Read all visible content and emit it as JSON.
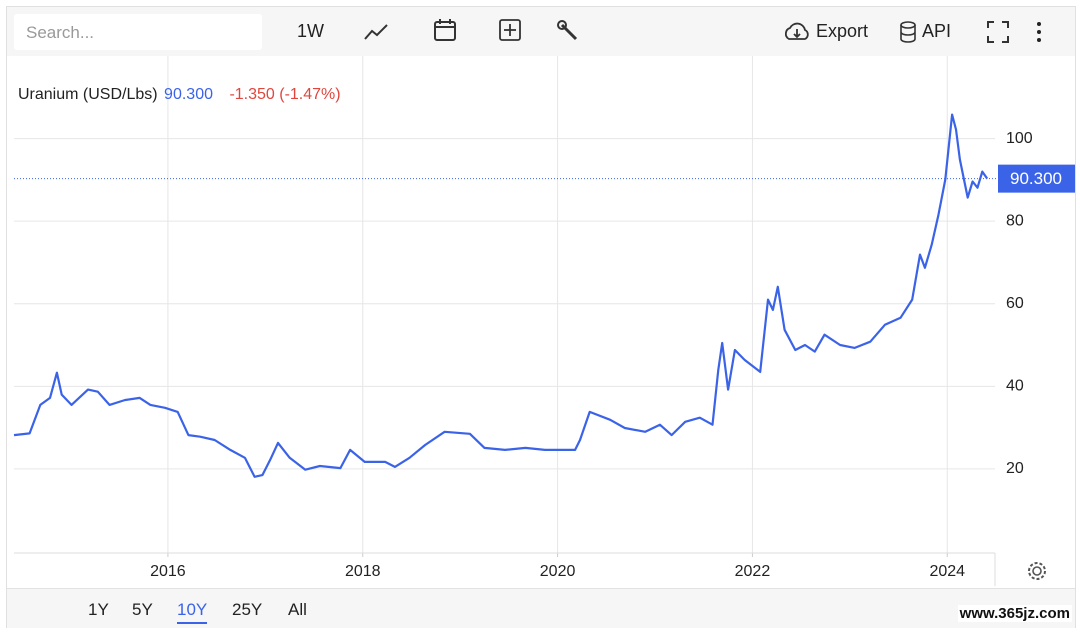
{
  "toolbar": {
    "search_placeholder": "Search...",
    "interval": "1W",
    "export": "Export",
    "api": "API"
  },
  "chart_data": {
    "type": "line",
    "change": "-1.350 (-1.47%)",
    "last_value": {
      "value": 90.3,
      "label": "90.300"
    },
    "x": [
      2014.42,
      2014.58,
      2014.69,
      2014.79,
      2014.86,
      2014.91,
      2015.01,
      2015.18,
      2015.28,
      2015.4,
      2015.56,
      2015.71,
      2015.82,
      2015.97,
      2016.1,
      2016.21,
      2016.33,
      2016.48,
      2016.64,
      2016.79,
      2016.89,
      2016.97,
      2017.05,
      2017.13,
      2017.25,
      2017.41,
      2017.56,
      2017.77,
      2017.87,
      2018.02,
      2018.23,
      2018.33,
      2018.48,
      2018.64,
      2018.84,
      2019.1,
      2019.25,
      2019.46,
      2019.67,
      2019.87,
      2020.18,
      2020.23,
      2020.33,
      2020.54,
      2020.69,
      2020.9,
      2021.05,
      2021.17,
      2021.31,
      2021.46,
      2021.59,
      2021.65,
      2021.69,
      2021.75,
      2021.82,
      2021.92,
      2022.08,
      2022.16,
      2022.21,
      2022.26,
      2022.33,
      2022.44,
      2022.54,
      2022.64,
      2022.74,
      2022.9,
      2023.05,
      2023.21,
      2023.36,
      2023.52,
      2023.64,
      2023.72,
      2023.77,
      2023.84,
      2023.91,
      2023.98,
      2024.05,
      2024.09,
      2024.13,
      2024.21,
      2024.26,
      2024.31,
      2024.36,
      2024.41
    ],
    "series": [
      {
        "name": "Uranium (USD/Lbs)",
        "color": "#3b63e8",
        "values": [
          28.2,
          28.6,
          35.5,
          37.2,
          43.3,
          38,
          35.5,
          39.2,
          38.7,
          35.5,
          36.7,
          37.2,
          35.5,
          34.8,
          33.8,
          28.2,
          27.8,
          27,
          24.6,
          22.7,
          18.1,
          18.5,
          22.2,
          26.3,
          22.7,
          19.8,
          20.7,
          20.2,
          24.6,
          21.7,
          21.7,
          20.5,
          22.7,
          25.8,
          29,
          28.5,
          25.1,
          24.6,
          25.1,
          24.6,
          24.6,
          27,
          33.8,
          31.9,
          29.9,
          29,
          30.7,
          28.2,
          31.4,
          32.4,
          30.7,
          44,
          50.5,
          39.2,
          48.8,
          46.4,
          43.5,
          61,
          58.5,
          64.1,
          53.7,
          48.8,
          50,
          48.4,
          52.5,
          50,
          49.3,
          50.8,
          54.9,
          56.6,
          61,
          71.9,
          68.7,
          74.3,
          81.6,
          90.1,
          105.8,
          102.2,
          94.9,
          85.7,
          89.6,
          88.1,
          92,
          90.3
        ]
      }
    ],
    "xlim": [
      2014.42,
      2024.49
    ],
    "xticks": [
      2016,
      2018,
      2020,
      2022,
      2024
    ],
    "ylim": [
      0,
      120
    ],
    "yticks": [
      20,
      40,
      60,
      80,
      100
    ],
    "grid": true
  },
  "range_buttons": [
    "1Y",
    "5Y",
    "10Y",
    "25Y",
    "All"
  ],
  "watermark": "www.365jz.com"
}
